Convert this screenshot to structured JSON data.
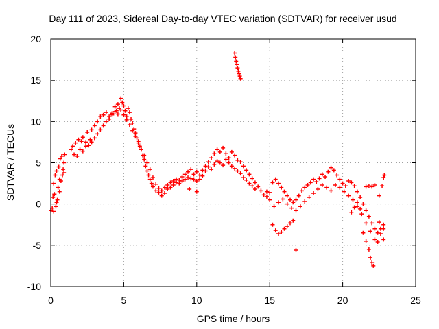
{
  "chart_data": {
    "type": "scatter",
    "title": "Day 111 of 2023, Sidereal Day-to-day VTEC variation (SDTVAR) for receiver usud",
    "xlabel": "GPS time / hours",
    "ylabel": "SDTVAR / TECUs",
    "xlim": [
      0,
      25
    ],
    "ylim": [
      -10,
      20
    ],
    "xticks": [
      0,
      5,
      10,
      15,
      20,
      25
    ],
    "yticks": [
      -10,
      -5,
      0,
      5,
      10,
      15,
      20
    ],
    "grid": true,
    "marker": "+",
    "color": "#ff0000",
    "series": [
      {
        "name": "SDTVAR",
        "points": [
          [
            0.0,
            -0.8
          ],
          [
            0.1,
            -0.5
          ],
          [
            0.15,
            0.8
          ],
          [
            0.2,
            2.5
          ],
          [
            0.25,
            1.2
          ],
          [
            0.3,
            3.5
          ],
          [
            0.35,
            -0.3
          ],
          [
            0.4,
            4.0
          ],
          [
            0.45,
            0.5
          ],
          [
            0.5,
            2.0
          ],
          [
            0.55,
            4.5
          ],
          [
            0.6,
            3.0
          ],
          [
            0.65,
            5.5
          ],
          [
            0.7,
            2.8
          ],
          [
            0.75,
            5.8
          ],
          [
            0.8,
            3.5
          ],
          [
            0.85,
            4.2
          ],
          [
            0.9,
            5.0
          ],
          [
            0.95,
            6.0
          ],
          [
            1.4,
            6.6
          ],
          [
            1.5,
            7.0
          ],
          [
            1.7,
            7.4
          ],
          [
            1.9,
            7.8
          ],
          [
            2.1,
            7.6
          ],
          [
            2.2,
            8.1
          ],
          [
            2.4,
            7.5
          ],
          [
            2.5,
            8.7
          ],
          [
            2.7,
            7.8
          ],
          [
            2.8,
            9.0
          ],
          [
            3.0,
            9.5
          ],
          [
            3.2,
            10.0
          ],
          [
            3.4,
            10.6
          ],
          [
            3.6,
            10.8
          ],
          [
            3.8,
            11.1
          ],
          [
            4.0,
            10.6
          ],
          [
            4.2,
            11.0
          ],
          [
            4.4,
            11.8
          ],
          [
            4.5,
            11.3
          ],
          [
            4.6,
            12.1
          ],
          [
            4.7,
            11.6
          ],
          [
            4.8,
            12.8
          ],
          [
            4.9,
            12.3
          ],
          [
            5.0,
            11.9
          ],
          [
            5.1,
            11.3
          ],
          [
            5.2,
            10.6
          ],
          [
            5.3,
            11.6
          ],
          [
            5.4,
            11.1
          ],
          [
            5.5,
            10.3
          ],
          [
            5.6,
            9.8
          ],
          [
            5.7,
            9.1
          ],
          [
            5.8,
            8.6
          ],
          [
            5.9,
            8.0
          ],
          [
            6.0,
            7.6
          ],
          [
            6.1,
            7.0
          ],
          [
            6.2,
            6.6
          ],
          [
            6.3,
            5.9
          ],
          [
            6.4,
            5.4
          ],
          [
            6.5,
            4.6
          ],
          [
            6.6,
            4.0
          ],
          [
            6.7,
            3.5
          ],
          [
            6.8,
            3.0
          ],
          [
            6.9,
            2.5
          ],
          [
            7.0,
            2.1
          ],
          [
            7.2,
            1.6
          ],
          [
            7.4,
            1.4
          ],
          [
            7.6,
            1.0
          ],
          [
            7.8,
            1.3
          ],
          [
            8.0,
            1.8
          ],
          [
            8.2,
            2.0
          ],
          [
            8.4,
            2.3
          ],
          [
            8.6,
            2.6
          ],
          [
            8.8,
            2.5
          ],
          [
            9.0,
            2.8
          ],
          [
            9.2,
            3.0
          ],
          [
            9.4,
            3.2
          ],
          [
            9.5,
            1.8
          ],
          [
            9.6,
            3.1
          ],
          [
            9.8,
            3.6
          ],
          [
            10.0,
            3.9
          ],
          [
            10.0,
            1.5
          ],
          [
            10.2,
            3.5
          ],
          [
            10.4,
            4.1
          ],
          [
            10.6,
            4.6
          ],
          [
            10.8,
            5.1
          ],
          [
            11.0,
            5.6
          ],
          [
            11.2,
            6.1
          ],
          [
            11.4,
            6.6
          ],
          [
            11.6,
            6.3
          ],
          [
            11.8,
            6.8
          ],
          [
            12.0,
            6.1
          ],
          [
            12.2,
            5.6
          ],
          [
            12.4,
            6.3
          ],
          [
            12.6,
            5.9
          ],
          [
            12.8,
            5.3
          ],
          [
            13.0,
            5.1
          ],
          [
            13.2,
            4.6
          ],
          [
            13.4,
            4.1
          ],
          [
            13.6,
            3.6
          ],
          [
            13.8,
            3.1
          ],
          [
            14.0,
            2.6
          ],
          [
            14.2,
            2.1
          ],
          [
            14.4,
            1.6
          ],
          [
            14.6,
            1.1
          ],
          [
            14.8,
            0.9
          ],
          [
            15.0,
            1.4
          ],
          [
            15.2,
            2.6
          ],
          [
            15.4,
            3.0
          ],
          [
            15.6,
            2.5
          ],
          [
            15.8,
            2.0
          ],
          [
            16.0,
            1.5
          ],
          [
            16.2,
            1.0
          ],
          [
            16.4,
            0.5
          ],
          [
            16.6,
            0.2
          ],
          [
            16.8,
            0.5
          ],
          [
            17.0,
            1.0
          ],
          [
            17.2,
            1.6
          ],
          [
            17.4,
            2.0
          ],
          [
            17.6,
            2.3
          ],
          [
            17.8,
            2.6
          ],
          [
            18.0,
            3.0
          ],
          [
            18.2,
            2.7
          ],
          [
            18.4,
            3.1
          ],
          [
            18.6,
            3.6
          ],
          [
            18.8,
            3.3
          ],
          [
            19.0,
            3.9
          ],
          [
            19.2,
            4.4
          ],
          [
            19.4,
            4.1
          ],
          [
            19.6,
            3.5
          ],
          [
            19.8,
            3.0
          ],
          [
            20.0,
            2.5
          ],
          [
            20.2,
            2.2
          ],
          [
            20.4,
            2.8
          ],
          [
            20.6,
            2.6
          ],
          [
            20.8,
            2.2
          ],
          [
            21.0,
            1.5
          ],
          [
            21.2,
            0.8
          ],
          [
            21.4,
            0.0
          ],
          [
            21.6,
            -0.8
          ],
          [
            21.8,
            -1.5
          ],
          [
            22.0,
            -2.3
          ],
          [
            22.2,
            -3.0
          ],
          [
            22.4,
            -3.5
          ],
          [
            22.6,
            -3.0
          ],
          [
            22.8,
            -2.5
          ],
          [
            22.5,
            1.0
          ],
          [
            22.7,
            2.2
          ],
          [
            22.8,
            3.2
          ],
          [
            22.85,
            3.5
          ],
          [
            14.8,
            1.5
          ],
          [
            15.0,
            0.5
          ],
          [
            15.3,
            -0.3
          ],
          [
            15.6,
            0.2
          ],
          [
            15.9,
            0.6
          ],
          [
            16.2,
            0.0
          ],
          [
            16.5,
            -0.5
          ],
          [
            16.8,
            -0.8
          ],
          [
            17.1,
            -0.3
          ],
          [
            17.4,
            0.3
          ],
          [
            17.7,
            0.8
          ],
          [
            18.0,
            1.3
          ],
          [
            18.3,
            1.8
          ],
          [
            18.6,
            2.3
          ],
          [
            18.9,
            2.0
          ],
          [
            19.2,
            1.6
          ],
          [
            19.5,
            2.3
          ],
          [
            19.8,
            2.0
          ],
          [
            20.1,
            1.5
          ],
          [
            20.4,
            1.0
          ],
          [
            20.7,
            0.5
          ],
          [
            21.0,
            -0.3
          ],
          [
            21.3,
            -1.2
          ],
          [
            21.6,
            -2.3
          ],
          [
            21.9,
            -3.3
          ],
          [
            22.2,
            -4.3
          ],
          [
            22.4,
            -4.6
          ],
          [
            22.6,
            -3.6
          ],
          [
            22.8,
            -4.3
          ],
          [
            22.5,
            -2.2
          ],
          [
            22.8,
            -3.0
          ],
          [
            15.2,
            -2.5
          ],
          [
            15.4,
            -3.2
          ],
          [
            15.6,
            -3.6
          ],
          [
            15.8,
            -3.4
          ],
          [
            16.0,
            -3.0
          ],
          [
            16.2,
            -2.7
          ],
          [
            16.4,
            -2.3
          ],
          [
            16.6,
            -2.0
          ],
          [
            16.8,
            -5.6
          ],
          [
            20.6,
            -1.0
          ],
          [
            20.8,
            -0.4
          ],
          [
            21.0,
            0.2
          ],
          [
            21.2,
            -0.6
          ],
          [
            21.4,
            -3.5
          ],
          [
            21.6,
            -4.5
          ],
          [
            21.8,
            -5.5
          ],
          [
            21.9,
            -6.5
          ],
          [
            22.0,
            -7.1
          ],
          [
            22.1,
            -7.5
          ],
          [
            21.6,
            2.1
          ],
          [
            21.8,
            2.2
          ],
          [
            22.0,
            2.1
          ],
          [
            22.2,
            2.3
          ],
          [
            12.6,
            18.3
          ],
          [
            12.65,
            17.8
          ],
          [
            12.7,
            17.3
          ],
          [
            12.75,
            16.9
          ],
          [
            12.8,
            16.5
          ],
          [
            12.85,
            16.1
          ],
          [
            12.9,
            15.8
          ],
          [
            12.95,
            15.5
          ],
          [
            13.0,
            15.2
          ],
          [
            10.6,
            4.0
          ],
          [
            10.8,
            4.5
          ],
          [
            11.0,
            4.2
          ],
          [
            11.2,
            4.8
          ],
          [
            11.4,
            5.2
          ],
          [
            11.6,
            5.0
          ],
          [
            11.8,
            4.7
          ],
          [
            12.0,
            5.4
          ],
          [
            12.2,
            5.0
          ],
          [
            12.4,
            4.6
          ],
          [
            12.6,
            4.3
          ],
          [
            12.8,
            4.0
          ],
          [
            13.0,
            3.7
          ],
          [
            13.2,
            3.2
          ],
          [
            13.4,
            2.9
          ],
          [
            13.6,
            2.5
          ],
          [
            13.8,
            2.2
          ],
          [
            14.0,
            1.8
          ],
          [
            1.6,
            6.0
          ],
          [
            1.8,
            5.8
          ],
          [
            2.0,
            6.6
          ],
          [
            2.2,
            6.4
          ],
          [
            2.4,
            7.0
          ],
          [
            2.6,
            7.1
          ],
          [
            2.8,
            7.5
          ],
          [
            3.0,
            8.0
          ],
          [
            3.2,
            8.5
          ],
          [
            3.4,
            9.0
          ],
          [
            3.6,
            9.5
          ],
          [
            3.8,
            10.0
          ],
          [
            4.0,
            10.3
          ],
          [
            4.2,
            10.8
          ],
          [
            4.4,
            11.2
          ],
          [
            4.6,
            10.9
          ],
          [
            4.8,
            11.4
          ],
          [
            5.0,
            10.8
          ],
          [
            5.2,
            10.2
          ],
          [
            5.4,
            9.6
          ],
          [
            5.6,
            8.9
          ],
          [
            5.8,
            8.2
          ],
          [
            6.0,
            7.4
          ],
          [
            6.2,
            6.6
          ],
          [
            6.4,
            5.9
          ],
          [
            6.6,
            5.0
          ],
          [
            6.8,
            4.2
          ],
          [
            7.0,
            3.2
          ],
          [
            7.2,
            2.4
          ],
          [
            7.4,
            1.9
          ],
          [
            7.6,
            1.6
          ],
          [
            7.8,
            2.0
          ],
          [
            8.0,
            2.3
          ],
          [
            8.2,
            2.6
          ],
          [
            8.4,
            2.8
          ],
          [
            8.6,
            3.0
          ],
          [
            8.8,
            2.9
          ],
          [
            9.0,
            3.3
          ],
          [
            9.2,
            3.6
          ],
          [
            9.4,
            3.9
          ],
          [
            9.6,
            4.2
          ],
          [
            9.8,
            3.0
          ],
          [
            10.0,
            2.8
          ],
          [
            10.2,
            3.0
          ],
          [
            10.4,
            3.4
          ],
          [
            0.2,
            -0.9
          ],
          [
            0.4,
            0.2
          ],
          [
            0.6,
            1.5
          ],
          [
            0.9,
            3.8
          ]
        ]
      }
    ]
  }
}
